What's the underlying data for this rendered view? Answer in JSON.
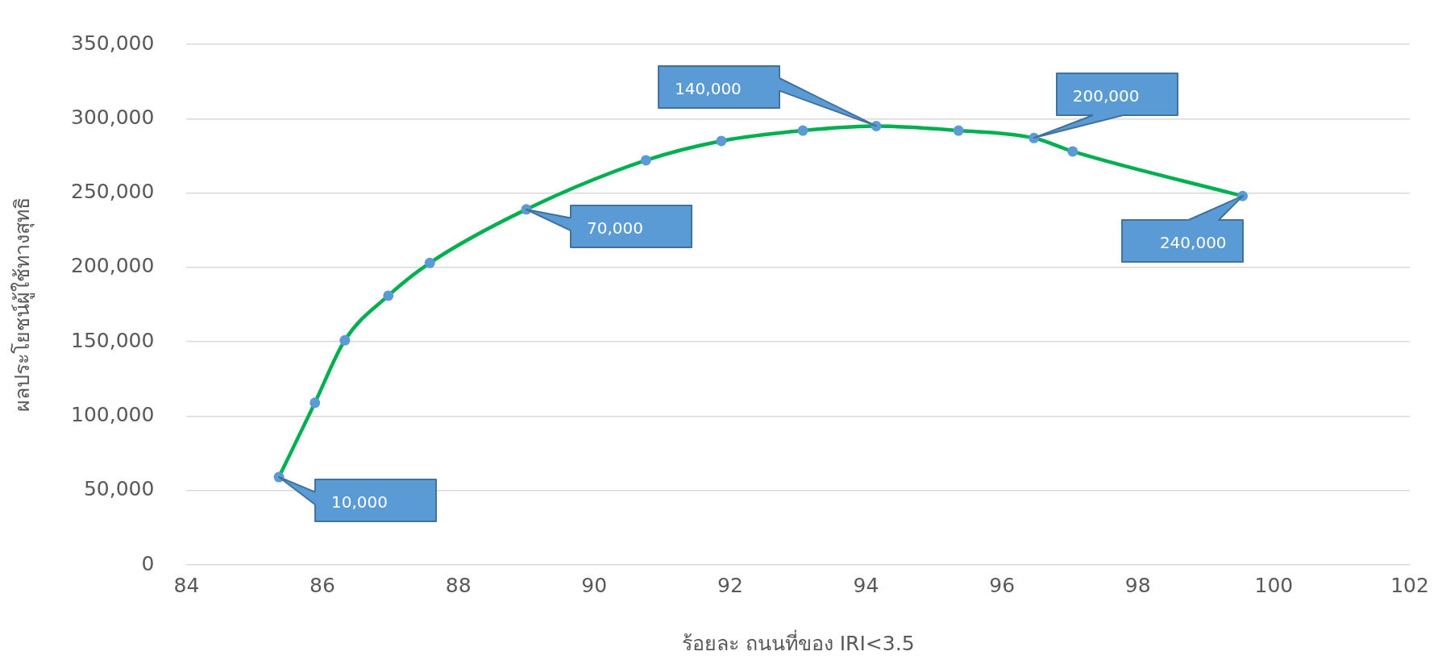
{
  "chart_data": {
    "type": "line",
    "xlabel": "ร้อยละ ถนนที่ของ IRI<3.5",
    "ylabel": "ผลประโยชน์ผู้ใช้ทางสุทธิ",
    "x": [
      85.36,
      85.89,
      86.33,
      86.97,
      87.58,
      89.0,
      90.76,
      91.87,
      93.07,
      94.15,
      95.36,
      96.47,
      97.04,
      99.54
    ],
    "series": [
      {
        "color": "#00b050",
        "colors": [
          "#5b9bd5",
          "#5b9bd5",
          "#5b9bd5",
          "#5b9bd5",
          "#5b9bd5",
          "#5b9bd5",
          "#5b9bd5",
          "#5b9bd5",
          "#5b9bd5",
          "#5b9bd5",
          "#5b9bd5",
          "#5b9bd5",
          "#5b9bd5",
          "#5b9bd5"
        ],
        "values": [
          59000,
          109000,
          151000,
          181000,
          203000,
          239000,
          272000,
          285000,
          292000,
          295000,
          292000,
          287000,
          278000,
          248000
        ]
      }
    ],
    "xlim": [
      84,
      102
    ],
    "xticks": [
      84,
      86,
      88,
      90,
      92,
      94,
      96,
      98,
      100,
      102
    ],
    "ylim": [
      0,
      350000
    ],
    "yticks": [
      0,
      {
        "value": 50000,
        "label": "50,000"
      },
      {
        "value": 100000,
        "label": "100,000"
      },
      {
        "value": 150000,
        "label": "150,000"
      },
      {
        "value": 200000,
        "label": "200,000"
      },
      {
        "value": 250000,
        "label": "250,000"
      },
      {
        "value": 300000,
        "label": "300,000"
      },
      {
        "value": 350000,
        "label": "350,000"
      }
    ],
    "grid": "y",
    "legend": false,
    "marker": "circle",
    "line_style": "solid",
    "annotations": [
      {
        "text": "10,000",
        "x": 85.36,
        "y": 59000
      },
      {
        "text": "70,000",
        "x": 89.0,
        "y": 239000
      },
      {
        "text": "140,000",
        "x": 94.15,
        "y": 295000
      },
      {
        "text": "200,000",
        "x": 96.47,
        "y": 287000
      },
      {
        "text": "240,000",
        "x": 99.54,
        "y": 248000
      }
    ]
  }
}
